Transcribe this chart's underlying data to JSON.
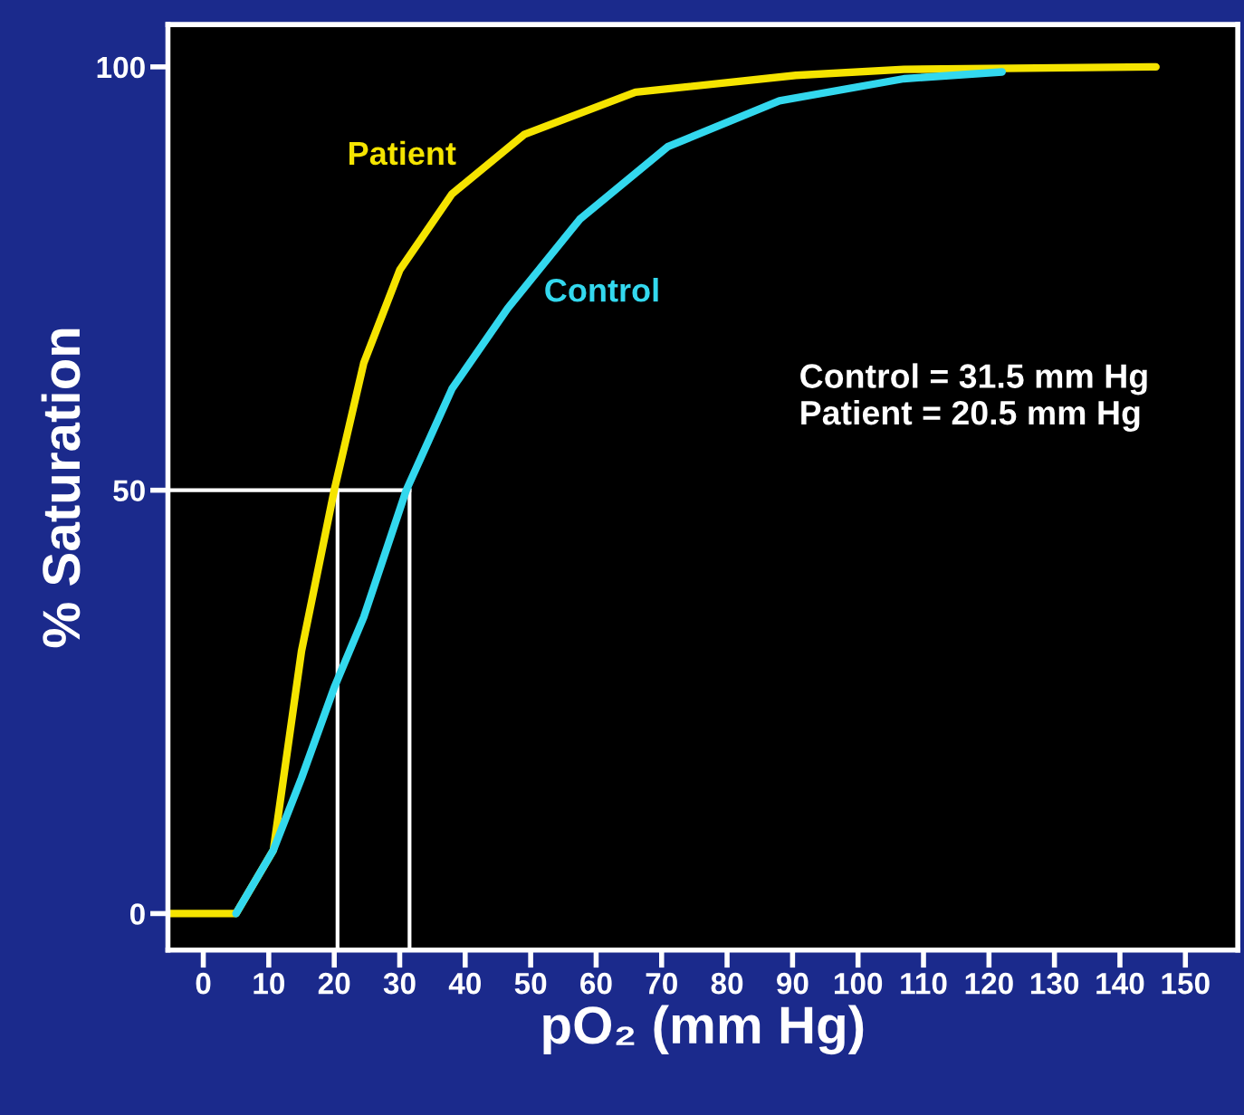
{
  "chart_data": {
    "type": "line",
    "xlabel": "pO₂ (mm Hg)",
    "ylabel": "% Saturation",
    "xlim": [
      -5.4,
      158
    ],
    "ylim": [
      -4.3,
      105
    ],
    "xticks": [
      0,
      10,
      20,
      30,
      40,
      50,
      60,
      70,
      80,
      90,
      100,
      110,
      120,
      130,
      140,
      150
    ],
    "yticks": [
      0,
      50,
      100
    ],
    "series": [
      {
        "name": "Patient",
        "color": "#f5e400",
        "x": [
          -5,
          5,
          10.7,
          15,
          20,
          24.5,
          30,
          38,
          49,
          66,
          90.5,
          107,
          145.5
        ],
        "values": [
          0,
          0,
          7.5,
          31,
          50,
          65,
          76,
          85,
          92,
          97,
          99,
          99.7,
          100
        ]
      },
      {
        "name": "Control",
        "color": "#33d8ee",
        "x": [
          5,
          10.7,
          15,
          20,
          24.5,
          31,
          38,
          46.5,
          57.5,
          71,
          88,
          107,
          122
        ],
        "values": [
          0,
          7.5,
          16,
          26.7,
          35,
          50,
          62,
          71.5,
          82,
          90.6,
          96,
          98.6,
          99.4
        ]
      }
    ],
    "ref_lines": [
      {
        "axis": "y",
        "value": 50,
        "color": "#ffffff"
      },
      {
        "axis": "x",
        "value": 20.5,
        "color": "#ffffff"
      },
      {
        "axis": "x",
        "value": 31.5,
        "color": "#ffffff"
      }
    ],
    "annotations": [
      "Control = 31.5 mm Hg",
      "Patient = 20.5 mm Hg"
    ],
    "legend": false,
    "grid": false
  }
}
